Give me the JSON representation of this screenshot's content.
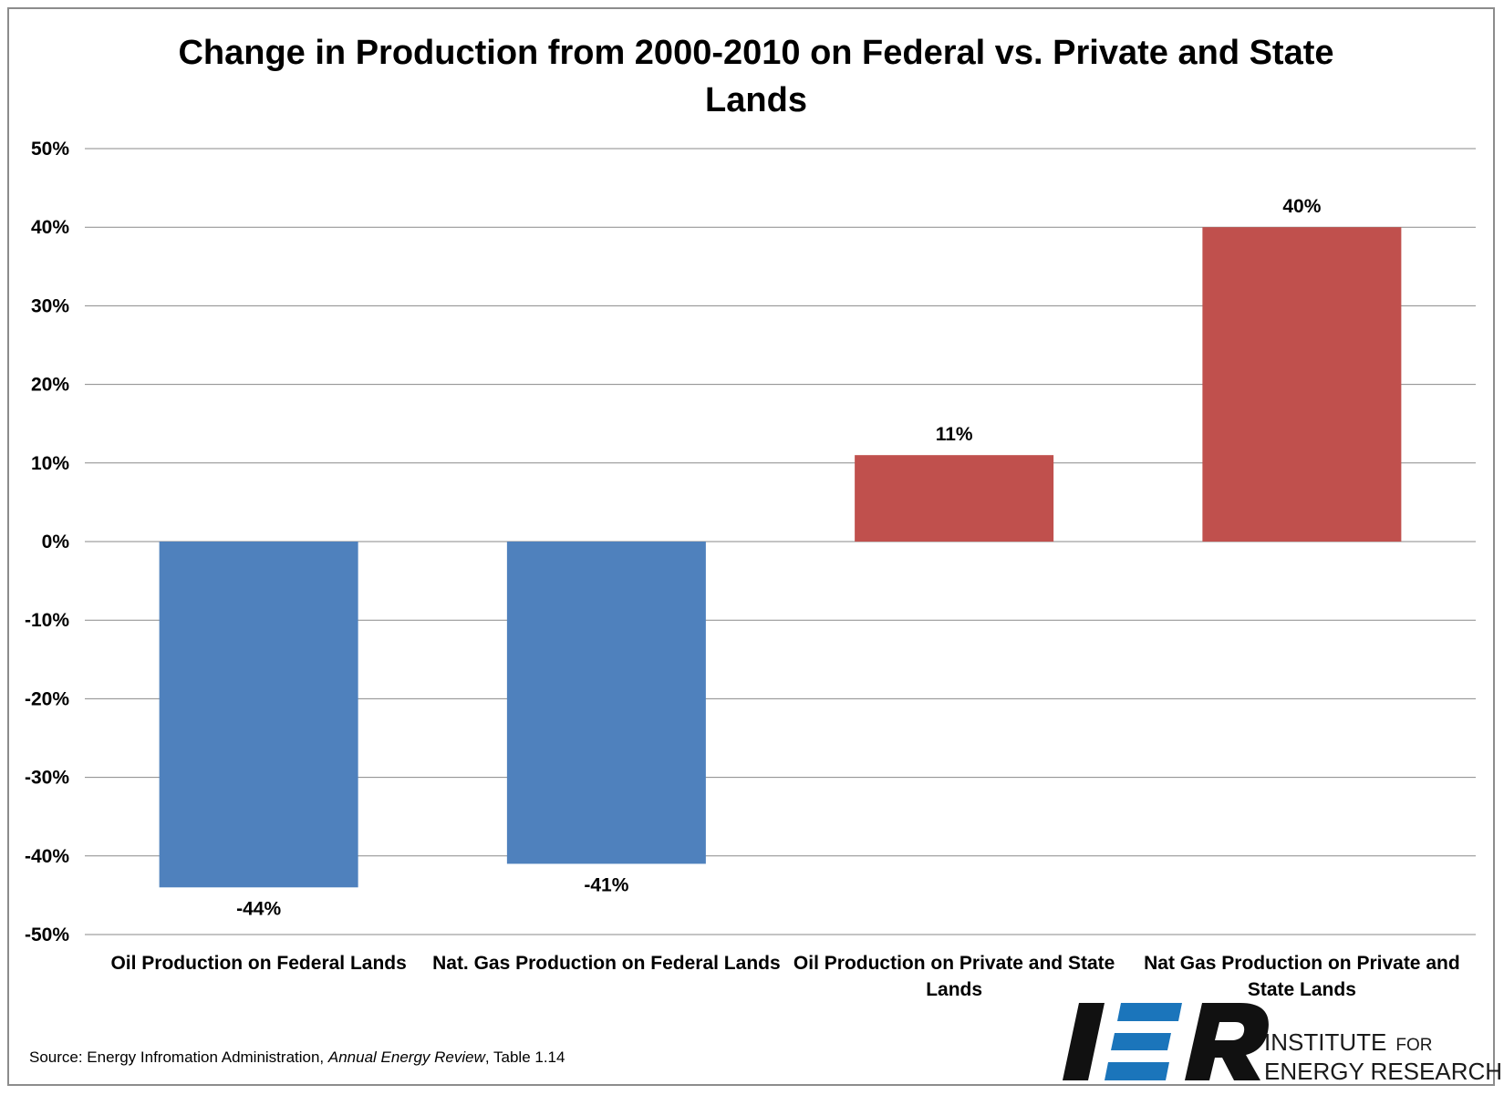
{
  "chart_data": {
    "type": "bar",
    "title_lines": [
      "Change in Production from 2000-2010 on Federal vs. Private and State",
      "Lands"
    ],
    "categories": [
      [
        "Oil Production on Federal Lands"
      ],
      [
        "Nat. Gas Production on Federal Lands"
      ],
      [
        "Oil Production on Private and State",
        "Lands"
      ],
      [
        "Nat Gas Production on Private and",
        "State Lands"
      ]
    ],
    "values": [
      -44,
      -41,
      11,
      40
    ],
    "value_labels": [
      "-44%",
      "-41%",
      "11%",
      "40%"
    ],
    "bar_colors": [
      "#4f81bd",
      "#4f81bd",
      "#c0504d",
      "#c0504d"
    ],
    "ylim": [
      -50,
      50
    ],
    "yticks": [
      50,
      40,
      30,
      20,
      10,
      0,
      -10,
      -20,
      -30,
      -40,
      -50
    ],
    "ytick_labels": [
      "50%",
      "40%",
      "30%",
      "20%",
      "10%",
      "0%",
      "-10%",
      "-20%",
      "-30%",
      "-40%",
      "-50%"
    ],
    "grid": true,
    "legend": "none"
  },
  "source": {
    "prefix": "Source: Energy Infromation Administration, ",
    "italic": "Annual Energy Review",
    "suffix": ", Table 1.14"
  },
  "logo": {
    "letters": "IER",
    "line1_a": "INSTITUTE",
    "line1_b": "FOR",
    "line2": "ENERGY RESEARCH",
    "blue": "#1b75bb",
    "dark": "#111111"
  }
}
